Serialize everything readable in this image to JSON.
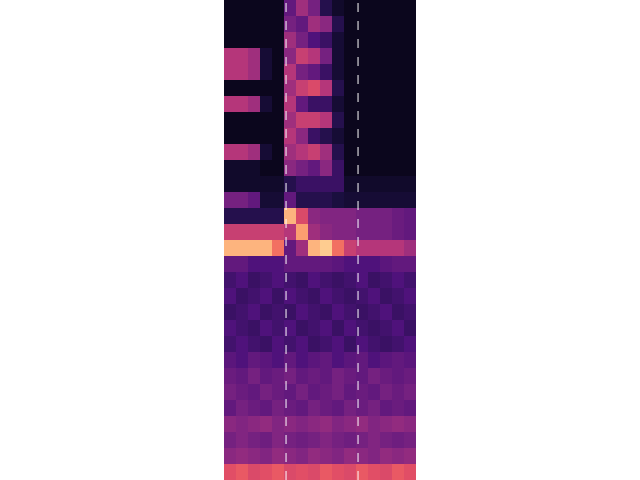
{
  "chart_data": {
    "type": "heatmap",
    "xlim": [
      0,
      16
    ],
    "ylim": [
      30,
      0
    ],
    "zlim": [
      0,
      1
    ],
    "tick_labels": false,
    "grid": false,
    "vlines": [
      5.17,
      11.17
    ],
    "line_style": "dashed",
    "color": "#ffffff",
    "cells": [
      [
        0.05,
        0.05,
        0.05,
        0.05,
        0.05,
        0.3,
        0.45,
        0.35,
        0.15,
        0.08,
        0.05,
        0.05,
        0.05,
        0.05,
        0.05,
        0.05
      ],
      [
        0.05,
        0.05,
        0.05,
        0.05,
        0.05,
        0.35,
        0.3,
        0.45,
        0.4,
        0.15,
        0.05,
        0.05,
        0.05,
        0.05,
        0.05,
        0.05
      ],
      [
        0.05,
        0.05,
        0.05,
        0.05,
        0.05,
        0.45,
        0.35,
        0.25,
        0.2,
        0.1,
        0.05,
        0.05,
        0.05,
        0.05,
        0.05,
        0.05
      ],
      [
        0.5,
        0.5,
        0.45,
        0.1,
        0.05,
        0.4,
        0.55,
        0.5,
        0.35,
        0.1,
        0.05,
        0.05,
        0.05,
        0.05,
        0.05,
        0.05
      ],
      [
        0.5,
        0.5,
        0.45,
        0.1,
        0.05,
        0.5,
        0.35,
        0.3,
        0.2,
        0.1,
        0.05,
        0.05,
        0.05,
        0.05,
        0.05,
        0.05
      ],
      [
        0.05,
        0.05,
        0.05,
        0.05,
        0.05,
        0.45,
        0.55,
        0.6,
        0.5,
        0.15,
        0.05,
        0.05,
        0.05,
        0.05,
        0.05,
        0.05
      ],
      [
        0.5,
        0.5,
        0.45,
        0.1,
        0.05,
        0.5,
        0.3,
        0.2,
        0.2,
        0.1,
        0.05,
        0.05,
        0.05,
        0.05,
        0.05,
        0.05
      ],
      [
        0.05,
        0.05,
        0.05,
        0.05,
        0.05,
        0.45,
        0.55,
        0.55,
        0.5,
        0.15,
        0.05,
        0.05,
        0.05,
        0.05,
        0.05,
        0.05
      ],
      [
        0.05,
        0.05,
        0.05,
        0.05,
        0.05,
        0.5,
        0.4,
        0.2,
        0.15,
        0.1,
        0.05,
        0.05,
        0.05,
        0.05,
        0.05,
        0.05
      ],
      [
        0.5,
        0.5,
        0.45,
        0.1,
        0.05,
        0.45,
        0.5,
        0.55,
        0.45,
        0.15,
        0.05,
        0.05,
        0.05,
        0.05,
        0.05,
        0.05
      ],
      [
        0.08,
        0.08,
        0.08,
        0.05,
        0.05,
        0.4,
        0.35,
        0.3,
        0.4,
        0.2,
        0.05,
        0.05,
        0.05,
        0.05,
        0.05,
        0.05
      ],
      [
        0.08,
        0.08,
        0.08,
        0.08,
        0.08,
        0.15,
        0.2,
        0.2,
        0.2,
        0.2,
        0.08,
        0.08,
        0.08,
        0.08,
        0.08,
        0.08
      ],
      [
        0.35,
        0.35,
        0.3,
        0.1,
        0.1,
        0.3,
        0.15,
        0.15,
        0.15,
        0.12,
        0.1,
        0.1,
        0.1,
        0.1,
        0.1,
        0.1
      ],
      [
        0.15,
        0.15,
        0.15,
        0.15,
        0.15,
        0.85,
        0.6,
        0.4,
        0.38,
        0.38,
        0.38,
        0.35,
        0.35,
        0.35,
        0.32,
        0.3
      ],
      [
        0.55,
        0.55,
        0.55,
        0.55,
        0.55,
        0.5,
        0.8,
        0.45,
        0.4,
        0.38,
        0.38,
        0.35,
        0.35,
        0.35,
        0.32,
        0.3
      ],
      [
        0.85,
        0.85,
        0.85,
        0.85,
        0.7,
        0.3,
        0.45,
        0.85,
        0.9,
        0.7,
        0.55,
        0.5,
        0.5,
        0.5,
        0.5,
        0.45
      ],
      [
        0.3,
        0.3,
        0.25,
        0.25,
        0.25,
        0.3,
        0.3,
        0.3,
        0.3,
        0.28,
        0.25,
        0.25,
        0.25,
        0.28,
        0.3,
        0.3
      ],
      [
        0.22,
        0.25,
        0.2,
        0.22,
        0.25,
        0.22,
        0.2,
        0.25,
        0.22,
        0.2,
        0.22,
        0.25,
        0.2,
        0.22,
        0.25,
        0.22
      ],
      [
        0.25,
        0.2,
        0.22,
        0.25,
        0.2,
        0.25,
        0.22,
        0.2,
        0.25,
        0.22,
        0.2,
        0.22,
        0.25,
        0.2,
        0.22,
        0.25
      ],
      [
        0.2,
        0.22,
        0.25,
        0.2,
        0.22,
        0.2,
        0.25,
        0.22,
        0.2,
        0.25,
        0.22,
        0.2,
        0.22,
        0.25,
        0.2,
        0.22
      ],
      [
        0.25,
        0.22,
        0.2,
        0.25,
        0.22,
        0.25,
        0.2,
        0.22,
        0.25,
        0.2,
        0.25,
        0.22,
        0.2,
        0.22,
        0.25,
        0.2
      ],
      [
        0.22,
        0.25,
        0.22,
        0.2,
        0.25,
        0.22,
        0.25,
        0.2,
        0.22,
        0.25,
        0.2,
        0.25,
        0.22,
        0.2,
        0.22,
        0.25
      ],
      [
        0.28,
        0.25,
        0.3,
        0.28,
        0.25,
        0.3,
        0.25,
        0.28,
        0.3,
        0.25,
        0.28,
        0.3,
        0.25,
        0.28,
        0.3,
        0.28
      ],
      [
        0.32,
        0.3,
        0.35,
        0.3,
        0.32,
        0.35,
        0.3,
        0.32,
        0.3,
        0.35,
        0.32,
        0.3,
        0.35,
        0.32,
        0.3,
        0.32
      ],
      [
        0.35,
        0.32,
        0.3,
        0.35,
        0.32,
        0.3,
        0.35,
        0.3,
        0.32,
        0.35,
        0.3,
        0.32,
        0.3,
        0.35,
        0.32,
        0.35
      ],
      [
        0.3,
        0.35,
        0.32,
        0.3,
        0.35,
        0.32,
        0.3,
        0.35,
        0.32,
        0.3,
        0.35,
        0.32,
        0.35,
        0.3,
        0.32,
        0.3
      ],
      [
        0.4,
        0.38,
        0.4,
        0.42,
        0.38,
        0.4,
        0.38,
        0.4,
        0.42,
        0.38,
        0.4,
        0.42,
        0.38,
        0.4,
        0.42,
        0.4
      ],
      [
        0.35,
        0.38,
        0.35,
        0.33,
        0.38,
        0.35,
        0.33,
        0.35,
        0.38,
        0.35,
        0.33,
        0.35,
        0.38,
        0.35,
        0.33,
        0.35
      ],
      [
        0.4,
        0.42,
        0.4,
        0.38,
        0.42,
        0.4,
        0.38,
        0.42,
        0.4,
        0.38,
        0.42,
        0.4,
        0.38,
        0.42,
        0.4,
        0.42
      ],
      [
        0.62,
        0.65,
        0.6,
        0.62,
        0.65,
        0.6,
        0.62,
        0.6,
        0.65,
        0.62,
        0.6,
        0.65,
        0.62,
        0.6,
        0.65,
        0.62
      ]
    ]
  }
}
